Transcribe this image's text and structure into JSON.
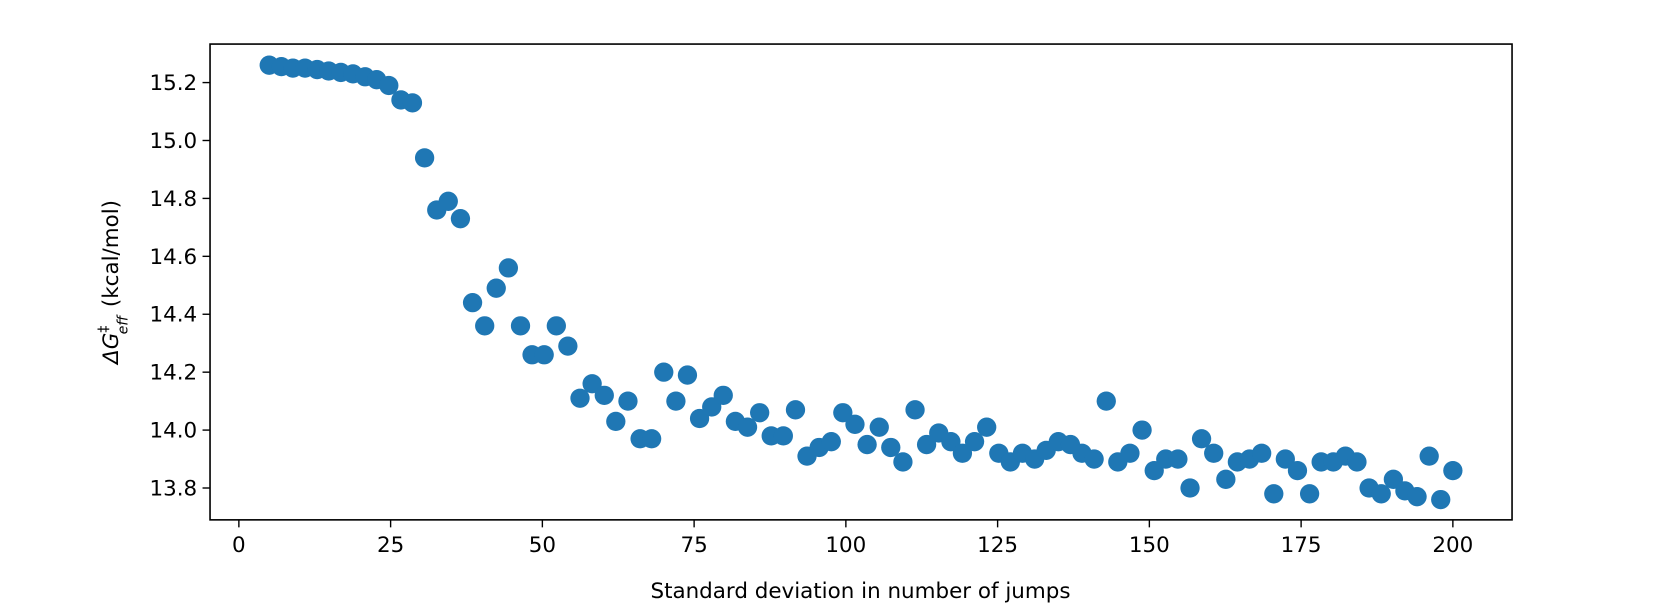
{
  "chart_data": {
    "type": "scatter",
    "x_label": "Standard deviation in number of jumps",
    "y_label": {
      "symbol": "ΔG",
      "sup": "‡",
      "sub": "eff",
      "unit": "(kcal/mol)"
    },
    "color": "#1f77b4",
    "x": [
      5.0,
      7.0,
      8.9,
      10.9,
      12.9,
      14.8,
      16.8,
      18.8,
      20.8,
      22.7,
      24.7,
      26.7,
      28.6,
      30.6,
      32.6,
      34.5,
      36.5,
      38.5,
      40.5,
      42.4,
      44.4,
      46.4,
      48.3,
      50.3,
      52.3,
      54.2,
      56.2,
      58.2,
      60.2,
      62.1,
      64.1,
      66.1,
      68.0,
      70.0,
      72.0,
      73.9,
      75.9,
      77.9,
      79.8,
      81.8,
      83.8,
      85.8,
      87.7,
      89.7,
      91.7,
      93.6,
      95.6,
      97.6,
      99.5,
      101.5,
      103.5,
      105.5,
      107.4,
      109.4,
      111.4,
      113.3,
      115.3,
      117.3,
      119.2,
      121.2,
      123.2,
      125.2,
      127.1,
      129.1,
      131.1,
      133.0,
      135.0,
      137.0,
      138.9,
      140.9,
      142.9,
      144.8,
      146.8,
      148.8,
      150.8,
      152.7,
      154.7,
      156.7,
      158.6,
      160.6,
      162.6,
      164.5,
      166.5,
      168.5,
      170.5,
      172.4,
      174.4,
      176.4,
      178.3,
      180.3,
      182.3,
      184.2,
      186.2,
      188.2,
      190.2,
      192.1,
      194.1,
      196.1,
      198.0,
      200.0
    ],
    "values": [
      15.26,
      15.255,
      15.25,
      15.25,
      15.245,
      15.24,
      15.235,
      15.23,
      15.22,
      15.21,
      15.19,
      15.14,
      15.13,
      14.94,
      14.76,
      14.79,
      14.73,
      14.44,
      14.36,
      14.49,
      14.56,
      14.36,
      14.26,
      14.26,
      14.36,
      14.29,
      14.11,
      14.16,
      14.12,
      14.03,
      14.1,
      13.97,
      13.97,
      14.2,
      14.1,
      14.19,
      14.04,
      14.08,
      14.12,
      14.03,
      14.01,
      14.06,
      13.98,
      13.98,
      14.07,
      13.91,
      13.94,
      13.96,
      14.06,
      14.02,
      13.95,
      14.01,
      13.94,
      13.89,
      14.07,
      13.95,
      13.99,
      13.96,
      13.92,
      13.96,
      14.01,
      13.92,
      13.89,
      13.92,
      13.9,
      13.93,
      13.96,
      13.95,
      13.92,
      13.9,
      14.1,
      13.89,
      13.92,
      14.0,
      13.86,
      13.9,
      13.9,
      13.8,
      13.97,
      13.92,
      13.83,
      13.89,
      13.9,
      13.92,
      13.78,
      13.9,
      13.86,
      13.78,
      13.89,
      13.89,
      13.91,
      13.89,
      13.8,
      13.78,
      13.83,
      13.79,
      13.77,
      13.91,
      13.76,
      13.86
    ],
    "xlim": [
      -4.75,
      209.75
    ],
    "ylim": [
      13.69,
      15.333
    ],
    "xticks": [
      0,
      25,
      50,
      75,
      100,
      125,
      150,
      175,
      200
    ],
    "yticks": [
      13.8,
      {
        "value": 14,
        "label": "14.0"
      },
      14.2,
      14.4,
      14.6,
      14.8,
      {
        "value": 15,
        "label": "15.0"
      },
      15.2
    ]
  }
}
